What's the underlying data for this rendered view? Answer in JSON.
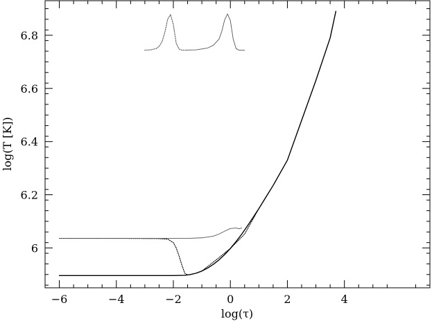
{
  "chart_data": {
    "type": "line",
    "title": "",
    "xlabel": "log(τ)",
    "ylabel": "log(T [K])",
    "xlim": [
      -6.5,
      7.0
    ],
    "ylim": [
      5.85,
      6.93
    ],
    "grid": false,
    "legend": "none",
    "x_ticks": [
      -6,
      -4,
      -2,
      0,
      2,
      4
    ],
    "x_tick_labels": [
      "−6",
      "−4",
      "−2",
      "0",
      "2",
      "4"
    ],
    "y_ticks": [
      6.0,
      6.2,
      6.4,
      6.6,
      6.8
    ],
    "y_tick_labels": [
      "6",
      "6.2",
      "6.4",
      "6.6",
      "6.8"
    ],
    "series": [
      {
        "style": "solid",
        "color": "#000000",
        "x": [
          -6,
          -5,
          -4,
          -3,
          -2,
          -1.6,
          -1.4,
          -1.2,
          -1.0,
          -0.8,
          -0.6,
          -0.4,
          -0.2,
          0,
          0.2,
          0.4,
          0.6,
          0.8,
          1.0,
          1.5,
          2.0,
          2.5,
          3.0,
          3.5,
          3.7
        ],
        "y": [
          5.896,
          5.896,
          5.896,
          5.896,
          5.896,
          5.897,
          5.9,
          5.905,
          5.913,
          5.924,
          5.938,
          5.955,
          5.975,
          5.998,
          6.024,
          6.052,
          6.083,
          6.115,
          6.148,
          6.235,
          6.33,
          6.48,
          6.63,
          6.79,
          6.89
        ]
      },
      {
        "style": "dotted",
        "color": "#000000",
        "x": [
          -6,
          -4,
          -2.5,
          -2.2,
          -2.0,
          -1.9,
          -1.8,
          -1.7,
          -1.6,
          -1.5,
          -1.4,
          -1.2,
          -1.0,
          -0.5,
          0,
          0.5,
          1.0
        ],
        "y": [
          6.036,
          6.036,
          6.035,
          6.033,
          6.02,
          6.0,
          5.97,
          5.935,
          5.905,
          5.898,
          5.9,
          5.905,
          5.913,
          5.955,
          5.998,
          6.052,
          6.148
        ]
      },
      {
        "style": "solid-thin",
        "color": "#555555",
        "x": [
          -6,
          -4,
          -2,
          -1.5,
          -1.0,
          -0.6,
          -0.4,
          -0.2,
          0,
          0.2,
          0.3,
          0.4
        ],
        "y": [
          6.036,
          6.036,
          6.036,
          6.036,
          6.038,
          6.044,
          6.052,
          6.063,
          6.073,
          6.075,
          6.072,
          6.075
        ]
      }
    ],
    "inset_profiles": [
      {
        "style": "dotted",
        "x": [
          -3.0,
          -2.8,
          -2.6,
          -2.5,
          -2.4,
          -2.3,
          -2.2,
          -2.1,
          -2.0,
          -1.9,
          -1.8,
          -1.7,
          -1.6
        ],
        "y": [
          6.744,
          6.745,
          6.75,
          6.758,
          6.775,
          6.81,
          6.86,
          6.878,
          6.84,
          6.77,
          6.748,
          6.744,
          6.744
        ]
      },
      {
        "style": "solid-thin",
        "x": [
          -1.6,
          -1.2,
          -0.8,
          -0.6,
          -0.4,
          -0.3,
          -0.2,
          -0.1,
          0.0,
          0.1,
          0.2,
          0.3,
          0.5
        ],
        "y": [
          6.744,
          6.745,
          6.752,
          6.762,
          6.785,
          6.815,
          6.858,
          6.88,
          6.855,
          6.785,
          6.75,
          6.744,
          6.744
        ]
      }
    ]
  }
}
